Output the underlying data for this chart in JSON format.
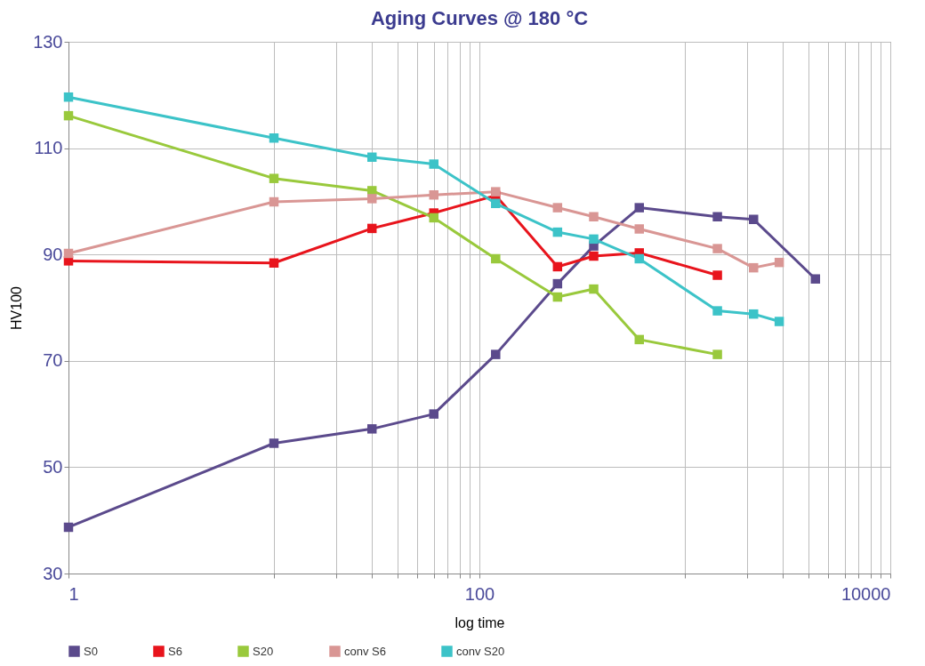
{
  "chart_data": {
    "type": "line",
    "title": "Aging Curves @ 180 °C",
    "xlabel": "log time",
    "ylabel": "HV100",
    "log": "x",
    "grid": true,
    "legend": "bottom",
    "marker": "square",
    "line_style": "solid",
    "x": [
      1,
      10,
      30,
      60,
      120,
      240,
      360,
      600,
      1440,
      2160,
      2880,
      4320
    ],
    "xlim": [
      1,
      10000
    ],
    "xticks": [
      1,
      {
        "value": 10,
        "label": null
      },
      {
        "value": 20,
        "label": null
      },
      {
        "value": 30,
        "label": null
      },
      {
        "value": 40,
        "label": null
      },
      {
        "value": 50,
        "label": null
      },
      {
        "value": 60,
        "label": null
      },
      {
        "value": 70,
        "label": null
      },
      {
        "value": 80,
        "label": null
      },
      {
        "value": 90,
        "label": null
      },
      100,
      {
        "value": 1000,
        "label": null
      },
      {
        "value": 2000,
        "label": null
      },
      {
        "value": 3000,
        "label": null
      },
      {
        "value": 4000,
        "label": null
      },
      {
        "value": 5000,
        "label": null
      },
      {
        "value": 6000,
        "label": null
      },
      {
        "value": 7000,
        "label": null
      },
      {
        "value": 8000,
        "label": null
      },
      {
        "value": 9000,
        "label": null
      },
      10000
    ],
    "ylim": [
      30,
      130
    ],
    "yticks": [
      30,
      50,
      70,
      90,
      110,
      130
    ],
    "series": [
      {
        "name": "S0",
        "color": "#5b4a8c",
        "values": [
          38.7,
          54.5,
          57.2,
          60.0,
          71.2,
          84.5,
          91.6,
          98.8,
          97.1,
          96.6,
          null,
          85.4
        ]
      },
      {
        "name": "S6",
        "color": "#e8141c",
        "values": [
          88.8,
          88.4,
          94.9,
          97.8,
          101.1,
          87.7,
          89.7,
          90.3,
          86.1,
          null,
          null,
          null
        ]
      },
      {
        "name": "S20",
        "color": "#99c93c",
        "values": [
          116.1,
          104.3,
          102.0,
          96.9,
          89.2,
          82.0,
          83.5,
          74.0,
          71.2,
          null,
          null,
          null
        ]
      },
      {
        "name": "conv S6",
        "color": "#d99694",
        "values": [
          90.2,
          99.9,
          100.5,
          101.2,
          101.8,
          98.8,
          97.1,
          94.8,
          91.1,
          87.5,
          88.5,
          null
        ]
      },
      {
        "name": "conv S20",
        "color": "#3cc3c8",
        "values": [
          119.6,
          111.9,
          108.3,
          107.0,
          99.6,
          94.2,
          92.9,
          89.2,
          79.4,
          78.8,
          77.4,
          null
        ]
      }
    ]
  }
}
